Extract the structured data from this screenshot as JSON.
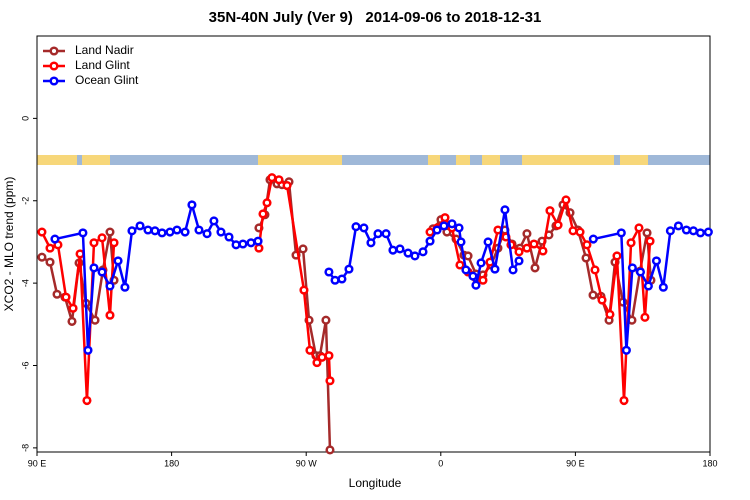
{
  "chart_data": {
    "type": "line",
    "title": "35N-40N July (Ver 9)   2014-09-06 to 2018-12-31",
    "x_label": "Longitude",
    "y_label": "XCO2 - MLO trend (ppm)",
    "xlim": [
      90,
      540
    ],
    "ylim": [
      -8.1,
      2
    ],
    "xticks": [
      {
        "value": 90,
        "label": "90 E"
      },
      180,
      {
        "value": 270,
        "label": "90 W"
      },
      {
        "value": 360,
        "label": "0"
      },
      {
        "value": 450,
        "label": "90 E"
      },
      {
        "value": 540,
        "label": "180"
      }
    ],
    "yticks": [
      0,
      -2,
      -4,
      -6,
      -8
    ],
    "grid": false,
    "legend": "top-left",
    "series": [
      {
        "name": "Land Nadir",
        "color": "#a52a2a",
        "x": [
          93.3,
          98.7,
          103.4,
          108.7,
          113.4,
          118.1,
          122.8,
          128.8,
          134.1,
          138.8,
          141.5,
          190,
          238.4,
          242.4,
          245.8,
          250.5,
          253.8,
          258.5,
          263.2,
          267.9,
          271.9,
          276.5,
          279.2,
          283.2,
          285.9,
          320,
          354.8,
          360.1,
          364.1,
          370.2,
          375.5,
          378.2,
          383.5,
          388.2,
          393.6,
          398.2,
          402.9,
          407.6,
          412.9,
          417.6,
          423.0,
          427.7,
          432.3,
          437.0,
          441.7,
          446.4,
          451.7,
          457.1,
          461.8,
          467.1,
          472.5,
          476.5,
          481.8,
          487.8,
          493.2,
          497.9,
          500.5
        ],
        "values": [
          -3.37,
          -3.49,
          -4.27,
          -4.34,
          -4.93,
          -3.51,
          -4.49,
          -4.9,
          -3.68,
          -2.76,
          -3.93,
          null,
          -2.66,
          -2.34,
          -1.49,
          -1.59,
          -1.61,
          -1.54,
          -3.32,
          -3.17,
          -4.9,
          -5.76,
          -5.76,
          -4.9,
          -8.05,
          null,
          -2.68,
          -2.46,
          -2.76,
          -2.93,
          -3.32,
          -3.34,
          -3.78,
          -3.8,
          -3.56,
          -3.15,
          -2.71,
          -3.05,
          -3.15,
          -2.8,
          -3.63,
          -2.98,
          -2.83,
          -2.61,
          -2.1,
          -2.29,
          -2.71,
          -3.39,
          -4.29,
          -4.32,
          -4.9,
          -3.49,
          -4.46,
          -4.9,
          -3.71,
          -2.78,
          -3.93
        ]
      },
      {
        "name": "Land Glint",
        "color": "#ff0000",
        "x": [
          93.3,
          98.7,
          104.0,
          109.4,
          114.1,
          118.8,
          123.4,
          128.1,
          133.5,
          138.8,
          141.5,
          190,
          238.4,
          241.1,
          243.8,
          247.1,
          251.8,
          257.2,
          268.5,
          272.5,
          277.2,
          280.6,
          285.2,
          285.9,
          320,
          352.8,
          357.5,
          362.8,
          367.5,
          372.8,
          378.2,
          383.5,
          388.2,
          392.9,
          398.2,
          403.6,
          406.9,
          412.3,
          417.6,
          422.3,
          428.3,
          433.0,
          438.4,
          443.7,
          448.4,
          453.1,
          457.7,
          463.1,
          467.8,
          473.1,
          477.8,
          482.5,
          487.2,
          492.5,
          496.5,
          499.9
        ],
        "values": [
          -2.76,
          -3.15,
          -3.07,
          -4.34,
          -4.61,
          -3.29,
          -6.85,
          -3.02,
          -2.9,
          -4.78,
          -3.02,
          null,
          -3.15,
          -2.32,
          -2.05,
          -1.44,
          -1.49,
          -1.63,
          -4.17,
          -5.63,
          -5.93,
          -5.8,
          -5.76,
          -6.37,
          null,
          -2.76,
          -2.66,
          -2.41,
          -2.66,
          -3.56,
          -3.73,
          -3.88,
          -3.93,
          -3.49,
          -2.71,
          -2.88,
          -3.07,
          -3.24,
          -3.15,
          -3.05,
          -3.22,
          -2.24,
          -2.59,
          -1.98,
          -2.73,
          -2.76,
          -3.07,
          -3.68,
          -4.41,
          -4.76,
          -3.34,
          -6.85,
          -3.02,
          -2.66,
          -4.83,
          -2.98
        ]
      },
      {
        "name": "Ocean Glint",
        "color": "#0000ff",
        "x": [
          102.0,
          120.7,
          124.1,
          128.1,
          133.5,
          138.8,
          144.2,
          148.8,
          153.5,
          158.9,
          164.2,
          168.9,
          173.6,
          178.9,
          183.6,
          189.0,
          193.6,
          198.3,
          203.7,
          208.3,
          213.0,
          218.4,
          223.1,
          227.7,
          233.1,
          237.8,
          260,
          285.2,
          289.3,
          293.9,
          298.6,
          303.3,
          308.6,
          313.3,
          318.0,
          323.4,
          328.0,
          332.7,
          338.1,
          342.7,
          348.1,
          352.8,
          357.5,
          362.1,
          367.5,
          372.2,
          373.5,
          376.8,
          381.5,
          383.5,
          386.9,
          391.6,
          396.2,
          402.9,
          408.3,
          412.3,
          440,
          462.0,
          480.7,
          484.1,
          488.1,
          493.5,
          498.8,
          504.2,
          508.8,
          513.5,
          518.9,
          524.2,
          528.9,
          533.6,
          538.9
        ],
        "values": [
          -2.93,
          -2.78,
          -5.63,
          -3.63,
          -3.73,
          -4.07,
          -3.46,
          -4.1,
          -2.73,
          -2.61,
          -2.71,
          -2.73,
          -2.78,
          -2.76,
          -2.71,
          -2.76,
          -2.1,
          -2.71,
          -2.8,
          -2.49,
          -2.76,
          -2.88,
          -3.07,
          -3.05,
          -3.02,
          -2.98,
          null,
          -3.73,
          -3.93,
          -3.9,
          -3.66,
          -2.63,
          -2.66,
          -3.02,
          -2.8,
          -2.8,
          -3.2,
          -3.17,
          -3.27,
          -3.34,
          -3.24,
          -2.98,
          -2.71,
          -2.61,
          -2.56,
          -2.66,
          -3.0,
          -3.68,
          -3.83,
          -4.05,
          -3.51,
          -3.0,
          -3.66,
          -2.22,
          -3.68,
          -3.46,
          null,
          -2.93,
          -2.78,
          -5.63,
          -3.63,
          -3.73,
          -4.07,
          -3.46,
          -4.1,
          -2.73,
          -2.61,
          -2.71,
          -2.73,
          -2.78,
          -2.76
        ]
      }
    ]
  }
}
